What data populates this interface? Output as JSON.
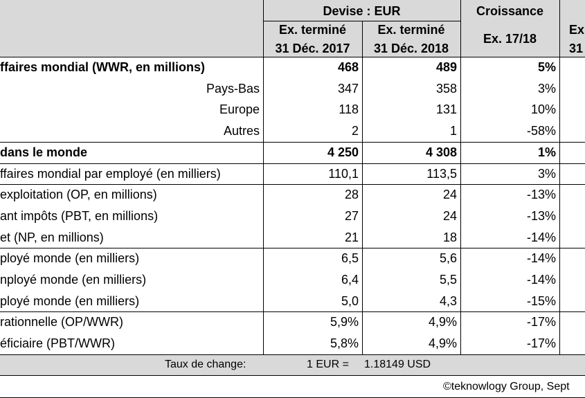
{
  "header": {
    "group1": "Devise : EUR",
    "group2": "Croissance",
    "columns": [
      [
        "Ex. terminé",
        "31 Déc. 2017"
      ],
      [
        "Ex. terminé",
        "31 Déc. 2018"
      ],
      [
        "Ex. 17/18"
      ],
      [
        "Ex",
        "31"
      ]
    ]
  },
  "table": {
    "rows": [
      {
        "label": "ffaires mondial (WWR, en millions)",
        "bold": true,
        "align": "left",
        "cells": [
          "468",
          "489",
          "5%"
        ]
      },
      {
        "label": "Pays-Bas",
        "bold": false,
        "align": "right",
        "cells": [
          "347",
          "358",
          "3%"
        ]
      },
      {
        "label": "Europe",
        "bold": false,
        "align": "right",
        "cells": [
          "118",
          "131",
          "10%"
        ]
      },
      {
        "label": "Autres",
        "bold": false,
        "align": "right",
        "cells": [
          "2",
          "1",
          "-58%"
        ]
      },
      {
        "label": "dans le monde",
        "bold": true,
        "align": "left",
        "cells": [
          "4 250",
          "4 308",
          "1%"
        ]
      },
      {
        "label": "ffaires mondial par employé (en milliers)",
        "bold": false,
        "align": "left",
        "cells": [
          "110,1",
          "113,5",
          "3%"
        ]
      },
      {
        "label": "exploitation (OP, en millions)",
        "bold": false,
        "align": "left",
        "cells": [
          "28",
          "24",
          "-13%"
        ]
      },
      {
        "label": "ant impôts (PBT, en millions)",
        "bold": false,
        "align": "left",
        "cells": [
          "27",
          "24",
          "-13%"
        ]
      },
      {
        "label": "et (NP, en millions)",
        "bold": false,
        "align": "left",
        "cells": [
          "21",
          "18",
          "-14%"
        ]
      },
      {
        "label": "ployé monde (en milliers)",
        "bold": false,
        "align": "left",
        "cells": [
          "6,5",
          "5,6",
          "-14%"
        ]
      },
      {
        "label": "nployé monde (en milliers)",
        "bold": false,
        "align": "left",
        "cells": [
          "6,4",
          "5,5",
          "-14%"
        ]
      },
      {
        "label": "ployé monde (en milliers)",
        "bold": false,
        "align": "left",
        "cells": [
          "5,0",
          "4,3",
          "-15%"
        ]
      },
      {
        "label": "rationnelle (OP/WWR)",
        "bold": false,
        "align": "left",
        "cells": [
          "5,9%",
          "4,9%",
          "-17%"
        ]
      },
      {
        "label": "éficiaire (PBT/WWR)",
        "bold": false,
        "align": "left",
        "cells": [
          "5,8%",
          "4,9%",
          "-17%"
        ]
      }
    ]
  },
  "footer": {
    "rate_label": "Taux de change:",
    "rate_from": "1 EUR =",
    "rate_to": "1.18149 USD",
    "copyright": "©teknowlogy Group, Sept"
  }
}
